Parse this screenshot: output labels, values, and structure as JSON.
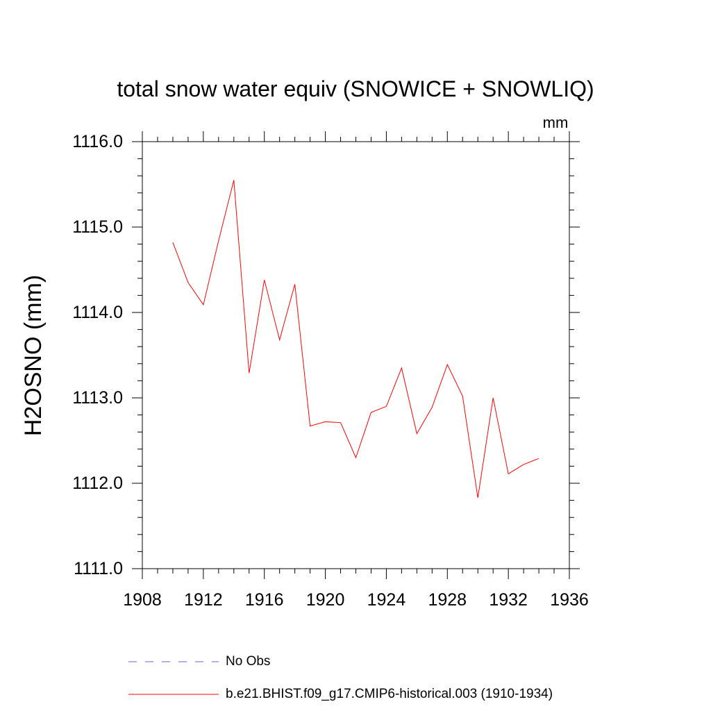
{
  "chart_data": {
    "type": "line",
    "title": "total snow water equiv (SNOWICE + SNOWLIQ)",
    "units": "mm",
    "ylabel": "H2OSNO  (mm)",
    "xlabel": "",
    "xlim": [
      1908,
      1936
    ],
    "ylim": [
      1111.0,
      1116.0
    ],
    "x_ticks": [
      "1908",
      "1912",
      "1916",
      "1920",
      "1924",
      "1928",
      "1932",
      "1936"
    ],
    "y_ticks": [
      "1116.0",
      "1115.0",
      "1114.0",
      "1113.0",
      "1112.0",
      "1111.0"
    ],
    "series": [
      {
        "name": "b.e21.BHIST.f09_g17.CMIP6-historical.003 (1910-1934)",
        "color": "#ff0000",
        "style": "solid",
        "x": [
          1910,
          1911,
          1912,
          1913,
          1914,
          1915,
          1916,
          1917,
          1918,
          1919,
          1920,
          1921,
          1922,
          1923,
          1924,
          1925,
          1926,
          1927,
          1928,
          1929,
          1930,
          1931,
          1932,
          1933,
          1934
        ],
        "values": [
          1114.82,
          1114.35,
          1114.09,
          1114.84,
          1115.55,
          1113.29,
          1114.38,
          1113.68,
          1114.33,
          1112.67,
          1112.72,
          1112.71,
          1112.3,
          1112.83,
          1112.9,
          1113.35,
          1112.58,
          1112.89,
          1113.39,
          1113.02,
          1111.83,
          1113.0,
          1112.11,
          1112.22,
          1112.29
        ]
      }
    ],
    "legend": [
      {
        "label": "No Obs",
        "color": "#6666cc",
        "style": "dashed"
      },
      {
        "label": "b.e21.BHIST.f09_g17.CMIP6-historical.003 (1910-1934)",
        "color": "#ff0000",
        "style": "solid"
      }
    ]
  }
}
